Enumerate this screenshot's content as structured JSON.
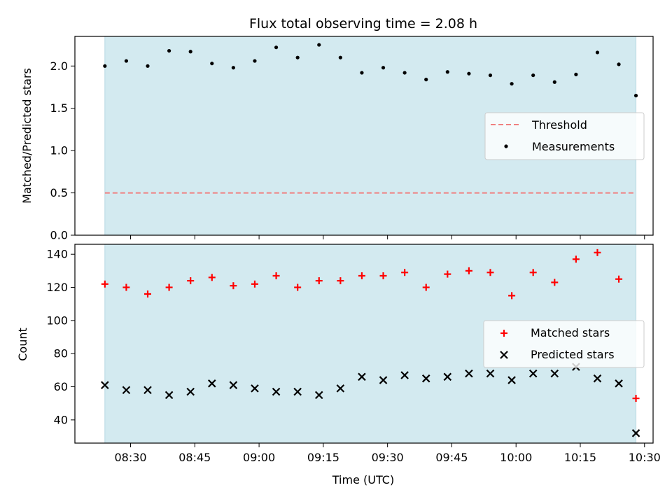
{
  "colors": {
    "observing_span": "#d3eaf0",
    "threshold": "#f08080",
    "measurements": "#000000",
    "matched": "#ff0000",
    "predicted": "#000000"
  },
  "chart_data": [
    {
      "type": "scatter",
      "title": "Flux total observing time = 2.08 h",
      "xlabel": "",
      "ylabel": "Matched/Predicted stars",
      "xlim": [
        "08:17",
        "10:32"
      ],
      "ylim": [
        0,
        2.35
      ],
      "yticks": [
        0.0,
        0.5,
        1.0,
        1.5,
        2.0
      ],
      "ytick_labels": [
        "0.0",
        "0.5",
        "1.0",
        "1.5",
        "2.0"
      ],
      "shaded_span": [
        "08:24",
        "10:28"
      ],
      "legend_position": "center-right",
      "series": [
        {
          "name": "Threshold",
          "kind": "hline",
          "y": 0.5,
          "x_range": [
            "08:24",
            "10:28"
          ],
          "style": "dashed"
        },
        {
          "name": "Measurements",
          "kind": "scatter",
          "marker": "dot",
          "x": [
            "08:24",
            "08:29",
            "08:34",
            "08:39",
            "08:44",
            "08:49",
            "08:54",
            "08:59",
            "09:04",
            "09:09",
            "09:14",
            "09:19",
            "09:24",
            "09:29",
            "09:34",
            "09:39",
            "09:44",
            "09:49",
            "09:54",
            "09:59",
            "10:04",
            "10:09",
            "10:14",
            "10:19",
            "10:24",
            "10:28"
          ],
          "y": [
            2.0,
            2.06,
            2.0,
            2.18,
            2.17,
            2.03,
            1.98,
            2.06,
            2.22,
            2.1,
            2.25,
            2.1,
            1.92,
            1.98,
            1.92,
            1.84,
            1.93,
            1.91,
            1.89,
            1.79,
            1.89,
            1.81,
            1.9,
            2.16,
            2.02,
            1.65
          ]
        }
      ]
    },
    {
      "type": "scatter",
      "title": "",
      "xlabel": "Time (UTC)",
      "ylabel": "Count",
      "xlim": [
        "08:17",
        "10:32"
      ],
      "ylim": [
        26,
        146
      ],
      "xticks": [
        "08:30",
        "08:45",
        "09:00",
        "09:15",
        "09:30",
        "09:45",
        "10:00",
        "10:15",
        "10:30"
      ],
      "yticks": [
        40,
        60,
        80,
        100,
        120,
        140
      ],
      "shaded_span": [
        "08:24",
        "10:28"
      ],
      "legend_position": "center-right",
      "series": [
        {
          "name": "Matched stars",
          "kind": "scatter",
          "marker": "plus",
          "x": [
            "08:24",
            "08:29",
            "08:34",
            "08:39",
            "08:44",
            "08:49",
            "08:54",
            "08:59",
            "09:04",
            "09:09",
            "09:14",
            "09:19",
            "09:24",
            "09:29",
            "09:34",
            "09:39",
            "09:44",
            "09:49",
            "09:54",
            "09:59",
            "10:04",
            "10:09",
            "10:14",
            "10:19",
            "10:24",
            "10:28"
          ],
          "y": [
            122,
            120,
            116,
            120,
            124,
            126,
            121,
            122,
            127,
            120,
            124,
            124,
            127,
            127,
            129,
            120,
            128,
            130,
            129,
            115,
            129,
            123,
            137,
            141,
            125,
            53
          ]
        },
        {
          "name": "Predicted stars",
          "kind": "scatter",
          "marker": "x",
          "x": [
            "08:24",
            "08:29",
            "08:34",
            "08:39",
            "08:44",
            "08:49",
            "08:54",
            "08:59",
            "09:04",
            "09:09",
            "09:14",
            "09:19",
            "09:24",
            "09:29",
            "09:34",
            "09:39",
            "09:44",
            "09:49",
            "09:54",
            "09:59",
            "10:04",
            "10:09",
            "10:14",
            "10:19",
            "10:24",
            "10:28"
          ],
          "y": [
            61,
            58,
            58,
            55,
            57,
            62,
            61,
            59,
            57,
            57,
            55,
            59,
            66,
            64,
            67,
            65,
            66,
            68,
            68,
            64,
            68,
            68,
            72,
            65,
            62,
            32
          ]
        }
      ]
    }
  ]
}
